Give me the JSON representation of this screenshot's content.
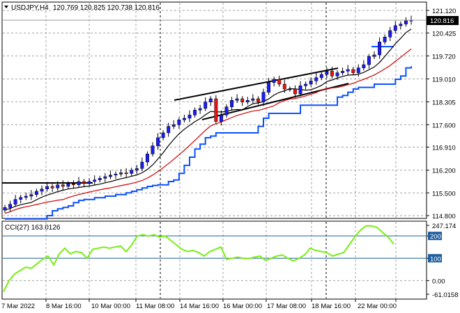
{
  "symbol_header": {
    "symbol": "USDJPY,H4",
    "ohlc": "120.769 120.825 120.738 120.816"
  },
  "price_panel": {
    "current_price": "120.816",
    "y_ticks": [
      "121.120",
      "120.425",
      "119.720",
      "119.010",
      "118.305",
      "117.600",
      "116.910",
      "116.200",
      "115.500",
      "114.800"
    ]
  },
  "cci_panel": {
    "label": "CCI(27) 163.0126",
    "y_ticks": [
      "247.174",
      "200",
      "100",
      "0.00",
      "-61.0158"
    ],
    "levels": [
      200,
      100
    ]
  },
  "x_axis": {
    "labels": [
      "7 Mar 2022",
      "8 Mar 16:00",
      "10 Mar 00:00",
      "11 Mar 08:00",
      "14 Mar 16:00",
      "16 Mar 00:00",
      "17 Mar 08:00",
      "18 Mar 16:00",
      "22 Mar 00:00"
    ]
  },
  "colors": {
    "bull_candle": "#1a1aff",
    "bear_candle": "#ee1111",
    "fast_ma": "#000000",
    "slow_ma": "#cc0000",
    "trailing_stop": "#0a50ff",
    "cci_line": "#77ee11",
    "level_line": "#1f5f9f",
    "grid": "#a0a0a0"
  },
  "chart_data": {
    "type": "line",
    "title": "USDJPY,H4",
    "price_ylim": [
      114.8,
      121.12
    ],
    "cci_ylim": [
      -61.0158,
      247.174
    ],
    "closes": [
      115.05,
      115.15,
      115.3,
      115.36,
      115.4,
      115.45,
      115.55,
      115.62,
      115.7,
      115.65,
      115.75,
      115.7,
      115.78,
      115.75,
      115.85,
      115.8,
      115.85,
      115.9,
      115.95,
      116.0,
      116.05,
      116.08,
      116.12,
      116.1,
      116.2,
      116.25,
      116.45,
      116.7,
      116.95,
      117.2,
      117.35,
      117.55,
      117.6,
      117.75,
      117.8,
      117.9,
      118.05,
      118.1,
      118.3,
      118.4,
      117.7,
      117.9,
      118.15,
      118.35,
      118.4,
      118.3,
      118.35,
      118.4,
      118.3,
      118.6,
      118.9,
      119.0,
      118.85,
      118.7,
      118.7,
      118.55,
      118.8,
      118.85,
      118.95,
      119.05,
      119.15,
      119.25,
      119.1,
      119.2,
      119.25,
      119.3,
      119.2,
      119.35,
      119.45,
      119.7,
      119.75,
      120.15,
      120.3,
      120.5,
      120.65,
      120.7,
      120.8,
      120.82
    ],
    "cci": [
      -50,
      0,
      30,
      45,
      60,
      55,
      75,
      95,
      110,
      70,
      120,
      145,
      120,
      130,
      125,
      100,
      140,
      145,
      150,
      145,
      150,
      155,
      130,
      160,
      200,
      205,
      200,
      205,
      195,
      200,
      180,
      160,
      140,
      130,
      135,
      125,
      110,
      130,
      140,
      150,
      95,
      100,
      105,
      100,
      98,
      105,
      110,
      90,
      100,
      110,
      115,
      100,
      88,
      100,
      115,
      145,
      135,
      130,
      125,
      110,
      118,
      125,
      160,
      195,
      225,
      245,
      245,
      238,
      215,
      195,
      163
    ],
    "series": [
      {
        "name": "CCI(27)",
        "last_value": 163.0126
      }
    ]
  }
}
